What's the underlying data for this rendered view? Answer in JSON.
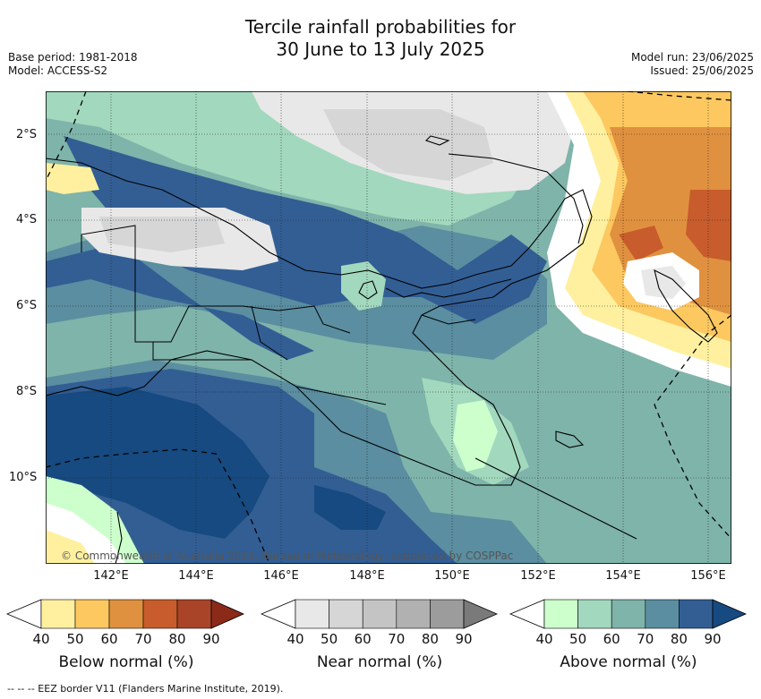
{
  "title_line1": "Tercile rainfall probabilities for",
  "title_line2": "30 June to 13 July 2025",
  "base_period": "Base period: 1981-2018",
  "model": "Model: ACCESS-S2",
  "model_run": "Model run: 23/06/2025",
  "issued": "Issued: 25/06/2025",
  "lat_labels": [
    "2°S",
    "4°S",
    "6°S",
    "8°S",
    "10°S"
  ],
  "lon_labels": [
    "142°E",
    "144°E",
    "146°E",
    "148°E",
    "150°E",
    "152°E",
    "154°E",
    "156°E"
  ],
  "copyright": "© Commonwealth of Australia 2025, Bureau of Meteorology, supported by COSPPac",
  "colorbars": [
    {
      "label": "Below normal (%)",
      "ticks": [
        "40",
        "50",
        "60",
        "70",
        "80",
        "90"
      ],
      "colors": [
        "#fff0a0",
        "#fdc860",
        "#e0913f",
        "#c85c2c",
        "#aa4428",
        "#8c2a1a"
      ]
    },
    {
      "label": "Near normal (%)",
      "ticks": [
        "40",
        "50",
        "60",
        "70",
        "80",
        "90"
      ],
      "colors": [
        "#e8e8e8",
        "#d6d6d6",
        "#c4c4c4",
        "#b1b1b1",
        "#9c9c9c",
        "#7a7a7a"
      ]
    },
    {
      "label": "Above normal (%)",
      "ticks": [
        "40",
        "50",
        "60",
        "70",
        "80",
        "90"
      ],
      "colors": [
        "#ccffcc",
        "#a2d8bd",
        "#7fb4aa",
        "#5a8ea0",
        "#325e94",
        "#164a80"
      ]
    }
  ],
  "footnote": "--  --  -- EEZ border V11 (Flanders Marine Institute, 2019)."
}
